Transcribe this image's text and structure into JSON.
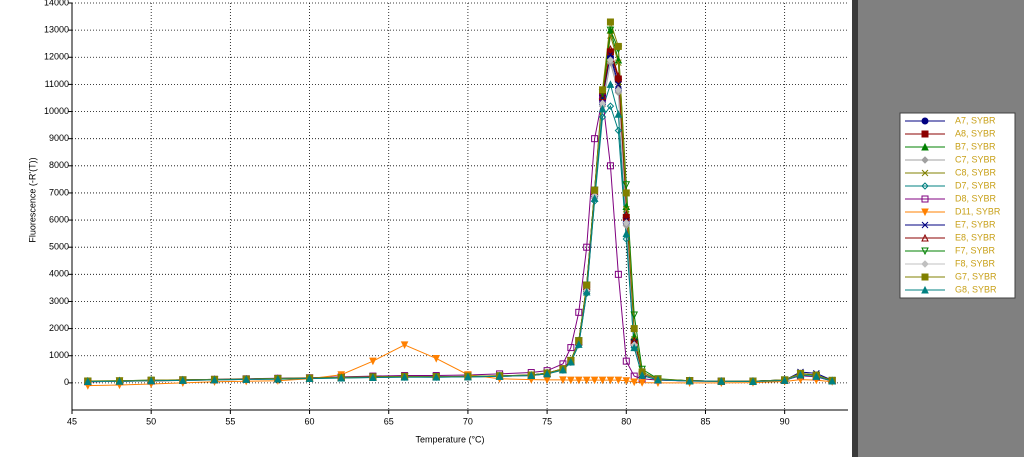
{
  "chart_data": {
    "type": "line",
    "xlabel": "Temperature (°C)",
    "ylabel": "Fluorescence (-R'(T))",
    "xlim": [
      45,
      94
    ],
    "ylim": [
      -1000,
      14000
    ],
    "xticks": [
      45,
      50,
      55,
      60,
      65,
      70,
      75,
      80,
      85,
      90
    ],
    "yticks": [
      0,
      1000,
      2000,
      3000,
      4000,
      5000,
      6000,
      7000,
      8000,
      9000,
      10000,
      11000,
      12000,
      13000,
      14000
    ],
    "grid": true,
    "x": [
      46,
      48,
      50,
      52,
      54,
      56,
      58,
      60,
      62,
      64,
      66,
      68,
      70,
      72,
      74,
      75,
      76,
      76.5,
      77,
      77.5,
      78,
      78.5,
      79,
      79.5,
      80,
      80.5,
      81,
      82,
      84,
      86,
      88,
      90,
      91,
      92,
      93
    ],
    "series": [
      {
        "name": "A7, SYBR",
        "color": "#000080",
        "marker": "circle",
        "filled": true,
        "values": [
          60,
          70,
          90,
          100,
          120,
          140,
          150,
          170,
          190,
          210,
          220,
          210,
          220,
          240,
          270,
          340,
          480,
          780,
          1450,
          3400,
          6900,
          10300,
          12000,
          10800,
          5900,
          1400,
          280,
          110,
          70,
          60,
          60,
          110,
          350,
          280,
          90
        ]
      },
      {
        "name": "A8, SYBR",
        "color": "#8b0000",
        "marker": "square",
        "filled": true,
        "values": [
          40,
          60,
          70,
          90,
          110,
          130,
          150,
          170,
          200,
          220,
          230,
          220,
          240,
          250,
          290,
          360,
          520,
          820,
          1550,
          3600,
          7100,
          10600,
          12200,
          11200,
          6100,
          1500,
          310,
          130,
          80,
          60,
          50,
          90,
          300,
          260,
          80
        ]
      },
      {
        "name": "B7, SYBR",
        "color": "#008000",
        "marker": "triangle",
        "filled": true,
        "values": [
          70,
          80,
          100,
          110,
          130,
          140,
          160,
          180,
          200,
          220,
          240,
          230,
          230,
          250,
          280,
          350,
          490,
          790,
          1500,
          3500,
          7000,
          10600,
          13000,
          11900,
          6500,
          1700,
          330,
          120,
          80,
          60,
          60,
          100,
          320,
          250,
          70
        ]
      },
      {
        "name": "C7, SYBR",
        "color": "#a0a0a0",
        "marker": "diamond",
        "filled": true,
        "values": [
          50,
          60,
          80,
          100,
          110,
          130,
          140,
          170,
          190,
          210,
          230,
          220,
          220,
          240,
          270,
          340,
          480,
          770,
          1450,
          3300,
          6800,
          10200,
          11800,
          10700,
          5800,
          1400,
          290,
          120,
          70,
          60,
          50,
          100,
          290,
          240,
          80
        ]
      },
      {
        "name": "C8, SYBR",
        "color": "#808000",
        "marker": "x",
        "filled": false,
        "values": [
          60,
          70,
          90,
          110,
          120,
          140,
          150,
          180,
          200,
          220,
          230,
          230,
          230,
          250,
          280,
          350,
          500,
          800,
          1500,
          3500,
          7000,
          10500,
          12800,
          11800,
          6400,
          1600,
          320,
          130,
          80,
          60,
          60,
          110,
          330,
          270,
          90
        ]
      },
      {
        "name": "D7, SYBR",
        "color": "#008080",
        "marker": "diamond",
        "filled": false,
        "values": [
          50,
          60,
          80,
          90,
          110,
          130,
          140,
          160,
          180,
          200,
          210,
          210,
          220,
          240,
          270,
          330,
          470,
          760,
          1400,
          3300,
          6700,
          9800,
          10200,
          9300,
          5300,
          1300,
          270,
          110,
          70,
          60,
          50,
          90,
          280,
          230,
          70
        ]
      },
      {
        "name": "D8, SYBR",
        "color": "#800080",
        "marker": "square",
        "filled": false,
        "values": [
          60,
          70,
          90,
          110,
          130,
          150,
          170,
          190,
          220,
          250,
          270,
          270,
          290,
          330,
          380,
          450,
          700,
          1300,
          2600,
          5000,
          9000,
          10500,
          8000,
          4000,
          800,
          250,
          150,
          100,
          70,
          60,
          60,
          100,
          260,
          220,
          70
        ]
      },
      {
        "name": "D11, SYBR",
        "color": "#ff8000",
        "marker": "triangle-down",
        "filled": true,
        "values": [
          -100,
          -80,
          -40,
          0,
          40,
          60,
          80,
          150,
          300,
          800,
          1400,
          900,
          300,
          150,
          120,
          110,
          110,
          100,
          100,
          100,
          100,
          100,
          100,
          100,
          80,
          30,
          10,
          0,
          0,
          0,
          10,
          50,
          120,
          100,
          40
        ]
      },
      {
        "name": "E7, SYBR",
        "color": "#000080",
        "marker": "x",
        "filled": false,
        "values": [
          40,
          60,
          80,
          100,
          120,
          130,
          150,
          170,
          190,
          210,
          220,
          220,
          230,
          250,
          280,
          350,
          500,
          800,
          1500,
          3500,
          7000,
          10500,
          12100,
          11000,
          6000,
          1500,
          300,
          120,
          80,
          60,
          60,
          100,
          400,
          350,
          100
        ]
      },
      {
        "name": "E8, SYBR",
        "color": "#8b0000",
        "marker": "triangle",
        "filled": false,
        "values": [
          50,
          70,
          80,
          100,
          120,
          140,
          150,
          170,
          200,
          220,
          230,
          220,
          230,
          250,
          280,
          350,
          500,
          810,
          1520,
          3550,
          7050,
          10550,
          12300,
          11300,
          6200,
          1550,
          310,
          120,
          80,
          60,
          60,
          100,
          320,
          260,
          80
        ]
      },
      {
        "name": "F7, SYBR",
        "color": "#008000",
        "marker": "triangle-down",
        "filled": false,
        "values": [
          60,
          70,
          90,
          110,
          120,
          140,
          160,
          180,
          200,
          220,
          230,
          230,
          240,
          260,
          290,
          360,
          510,
          820,
          1550,
          3600,
          7100,
          10700,
          13000,
          12300,
          7300,
          2500,
          500,
          150,
          80,
          60,
          60,
          110,
          340,
          280,
          90
        ]
      },
      {
        "name": "F8, SYBR",
        "color": "#c0c0c0",
        "marker": "diamond",
        "filled": true,
        "values": [
          50,
          60,
          80,
          100,
          110,
          130,
          150,
          170,
          190,
          210,
          220,
          220,
          230,
          240,
          270,
          340,
          480,
          780,
          1450,
          3400,
          6900,
          10300,
          11900,
          10800,
          5900,
          1400,
          290,
          120,
          70,
          60,
          50,
          100,
          300,
          250,
          80
        ]
      },
      {
        "name": "G7, SYBR",
        "color": "#808000",
        "marker": "square",
        "filled": true,
        "values": [
          70,
          80,
          100,
          110,
          130,
          140,
          160,
          180,
          200,
          220,
          240,
          230,
          240,
          260,
          290,
          360,
          520,
          830,
          1550,
          3600,
          7100,
          10800,
          13300,
          12400,
          7000,
          2000,
          400,
          140,
          80,
          60,
          60,
          110,
          350,
          290,
          90
        ]
      },
      {
        "name": "G8, SYBR",
        "color": "#008080",
        "marker": "triangle",
        "filled": true,
        "values": [
          50,
          60,
          80,
          90,
          110,
          130,
          140,
          160,
          180,
          200,
          210,
          210,
          220,
          240,
          270,
          330,
          480,
          770,
          1420,
          3350,
          6800,
          10100,
          11000,
          9900,
          5500,
          1300,
          280,
          110,
          70,
          60,
          50,
          90,
          290,
          240,
          70
        ]
      }
    ]
  }
}
